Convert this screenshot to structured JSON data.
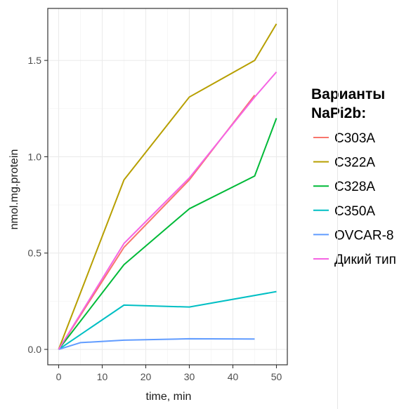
{
  "chart_data": {
    "type": "line",
    "xlabel": "time, min",
    "ylabel": "nmol.mg.protein",
    "xlim": [
      -2.5,
      52.5
    ],
    "ylim": [
      -0.08,
      1.77
    ],
    "x_ticks": [
      0,
      10,
      20,
      30,
      40,
      50
    ],
    "x_tick_labels": [
      "0",
      "10",
      "20",
      "30",
      "40",
      "50"
    ],
    "y_ticks": [
      0.0,
      0.5,
      1.0,
      1.5
    ],
    "y_tick_labels": [
      "0.0",
      "0.5",
      "1.0",
      "1.5"
    ],
    "grid": true,
    "legend": {
      "title_line1": "Варианты",
      "title_line2": "NaPi2b:",
      "position": "right"
    },
    "series": [
      {
        "name": "C303A",
        "color": "#F8766D",
        "points": [
          [
            0,
            0.0
          ],
          [
            15,
            0.53
          ],
          [
            30,
            0.88
          ],
          [
            45,
            1.32
          ]
        ]
      },
      {
        "name": "C322A",
        "color": "#B79F00",
        "points": [
          [
            0,
            0.0
          ],
          [
            15,
            0.88
          ],
          [
            30,
            1.31
          ],
          [
            45,
            1.5
          ],
          [
            50,
            1.69
          ]
        ]
      },
      {
        "name": "C328A",
        "color": "#00BA38",
        "points": [
          [
            0,
            0.0
          ],
          [
            15,
            0.44
          ],
          [
            30,
            0.73
          ],
          [
            45,
            0.9
          ],
          [
            50,
            1.2
          ]
        ]
      },
      {
        "name": "C350A",
        "color": "#00BFC4",
        "points": [
          [
            0,
            0.0
          ],
          [
            15,
            0.23
          ],
          [
            30,
            0.22
          ],
          [
            50,
            0.3
          ]
        ]
      },
      {
        "name": "OVCAR-8",
        "color": "#619CFF",
        "points": [
          [
            0,
            0.0
          ],
          [
            5,
            0.035
          ],
          [
            15,
            0.048
          ],
          [
            30,
            0.055
          ],
          [
            45,
            0.054
          ]
        ]
      },
      {
        "name": "Дикий тип",
        "color": "#F564E3",
        "points": [
          [
            0,
            0.0
          ],
          [
            15,
            0.55
          ],
          [
            30,
            0.89
          ],
          [
            45,
            1.31
          ],
          [
            50,
            1.44
          ]
        ]
      }
    ]
  }
}
